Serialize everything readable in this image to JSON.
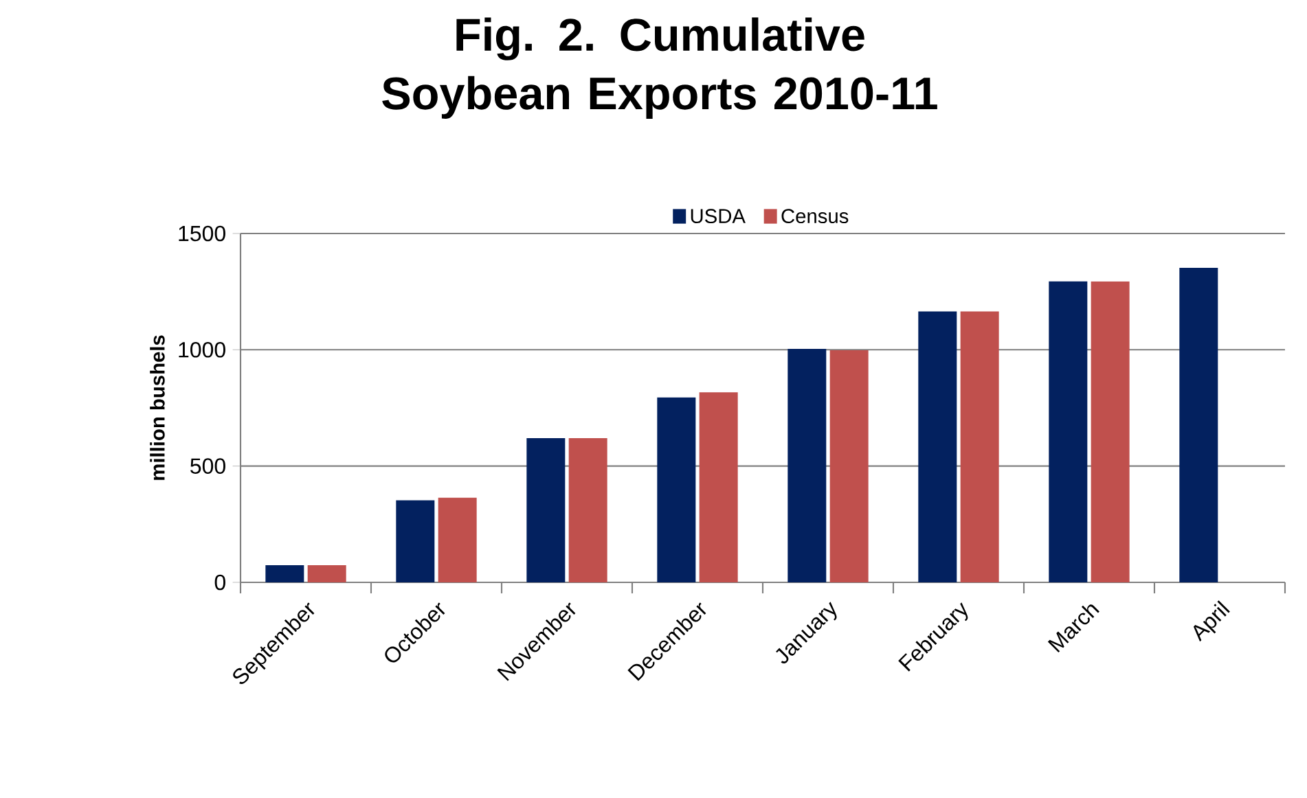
{
  "chart_data": {
    "type": "bar",
    "title": "Fig. 2. Cumulative Soybean Exports 2010-11",
    "ylabel": "million bushels",
    "categories": [
      "September",
      "October",
      "November",
      "December",
      "January",
      "February",
      "March",
      "April"
    ],
    "series": [
      {
        "name": "USDA",
        "color": "#03215f",
        "values": [
          74,
          353,
          620,
          795,
          1004,
          1165,
          1294,
          1352
        ]
      },
      {
        "name": "Census",
        "color": "#c0504d",
        "values": [
          74,
          364,
          620,
          817,
          998,
          1165,
          1294,
          null
        ]
      }
    ],
    "ylim": [
      0,
      1500
    ],
    "yticks": [
      0,
      500,
      1000,
      1500
    ],
    "grid": "y",
    "legend": "top"
  }
}
